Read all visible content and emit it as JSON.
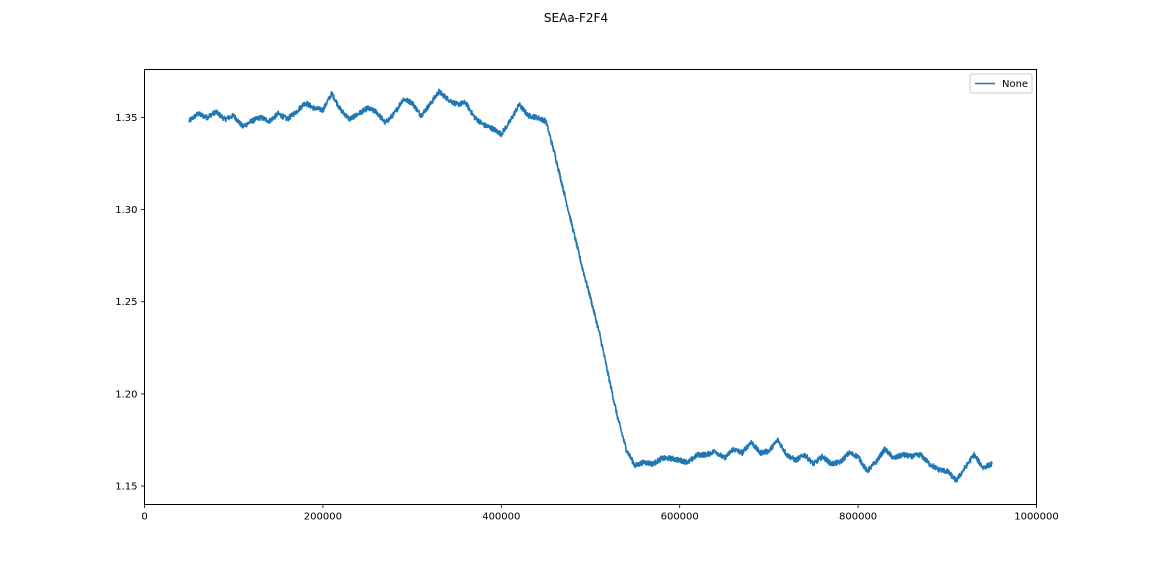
{
  "chart_data": {
    "type": "line",
    "title": "SEAa-F2F4",
    "xlabel": "",
    "ylabel": "",
    "xlim": [
      0,
      1000000
    ],
    "ylim": [
      1.14,
      1.376
    ],
    "xticks": [
      0,
      200000,
      400000,
      600000,
      800000,
      1000000
    ],
    "xtick_labels": [
      "0",
      "200000",
      "400000",
      "600000",
      "800000",
      "1000000"
    ],
    "yticks": [
      1.15,
      1.2,
      1.25,
      1.3,
      1.35
    ],
    "ytick_labels": [
      "1.15",
      "1.20",
      "1.25",
      "1.30",
      "1.35"
    ],
    "grid": false,
    "legend": {
      "placement": "top-right",
      "entries": [
        "None"
      ]
    },
    "series": [
      {
        "name": "None",
        "color": "#1f77b4",
        "x": [
          50000,
          60000,
          70000,
          80000,
          90000,
          100000,
          110000,
          120000,
          130000,
          140000,
          150000,
          160000,
          170000,
          180000,
          190000,
          200000,
          210000,
          220000,
          230000,
          240000,
          250000,
          260000,
          270000,
          280000,
          290000,
          300000,
          310000,
          320000,
          330000,
          340000,
          350000,
          360000,
          370000,
          380000,
          390000,
          400000,
          410000,
          420000,
          430000,
          440000,
          450000,
          460000,
          470000,
          480000,
          490000,
          500000,
          510000,
          520000,
          530000,
          540000,
          550000,
          560000,
          570000,
          580000,
          590000,
          600000,
          610000,
          620000,
          630000,
          640000,
          650000,
          660000,
          670000,
          680000,
          690000,
          700000,
          710000,
          720000,
          730000,
          740000,
          750000,
          760000,
          770000,
          780000,
          790000,
          800000,
          810000,
          820000,
          830000,
          840000,
          850000,
          860000,
          870000,
          880000,
          890000,
          900000,
          910000,
          920000,
          930000,
          940000,
          950000
        ],
        "values": [
          1.348,
          1.352,
          1.35,
          1.353,
          1.349,
          1.351,
          1.345,
          1.348,
          1.35,
          1.348,
          1.352,
          1.349,
          1.353,
          1.358,
          1.355,
          1.354,
          1.363,
          1.354,
          1.349,
          1.352,
          1.355,
          1.353,
          1.347,
          1.352,
          1.36,
          1.358,
          1.351,
          1.357,
          1.364,
          1.36,
          1.357,
          1.358,
          1.35,
          1.346,
          1.344,
          1.341,
          1.348,
          1.357,
          1.351,
          1.35,
          1.348,
          1.33,
          1.31,
          1.29,
          1.27,
          1.252,
          1.233,
          1.21,
          1.188,
          1.17,
          1.161,
          1.163,
          1.162,
          1.165,
          1.165,
          1.164,
          1.163,
          1.167,
          1.167,
          1.169,
          1.165,
          1.17,
          1.168,
          1.174,
          1.168,
          1.169,
          1.175,
          1.167,
          1.164,
          1.167,
          1.162,
          1.166,
          1.162,
          1.163,
          1.168,
          1.166,
          1.158,
          1.163,
          1.17,
          1.165,
          1.167,
          1.166,
          1.167,
          1.162,
          1.159,
          1.158,
          1.153,
          1.16,
          1.167,
          1.16,
          1.162
        ]
      }
    ]
  }
}
